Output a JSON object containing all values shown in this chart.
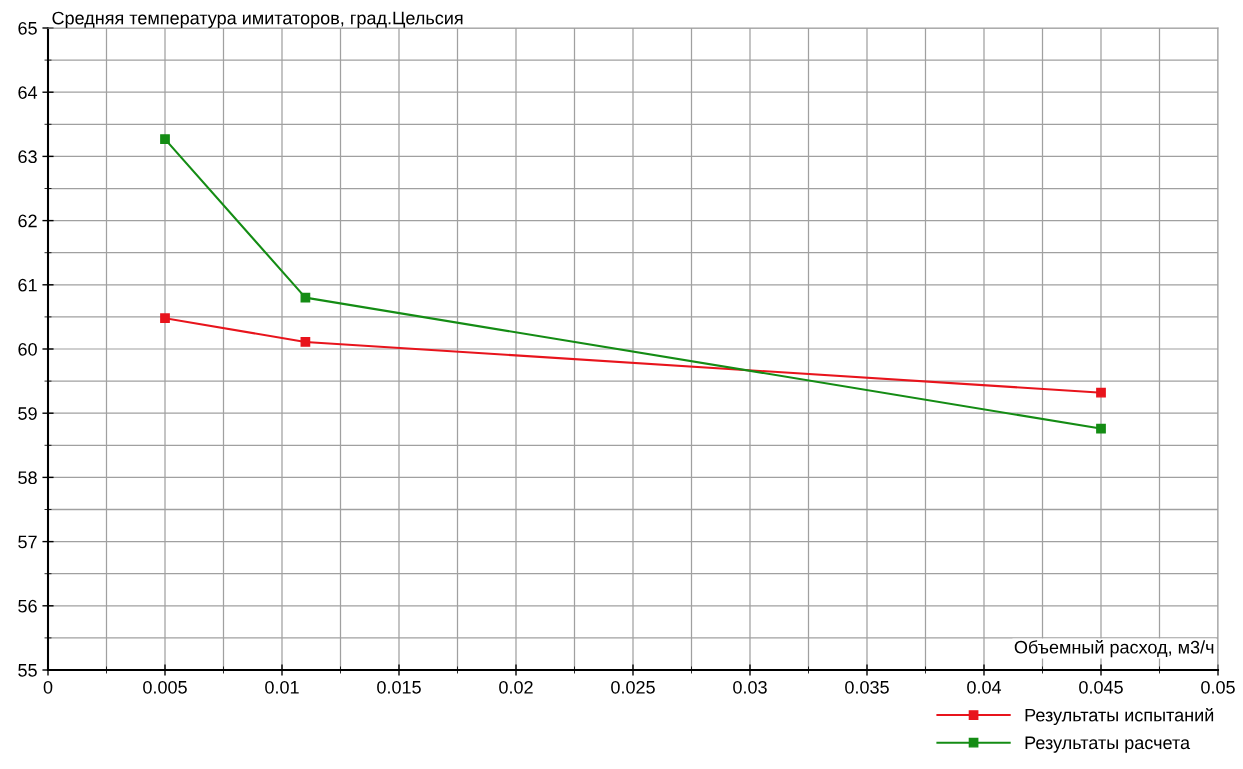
{
  "chart_data": {
    "type": "line",
    "xlabel": "Объемный расход, м3/ч",
    "ylabel": "Средняя температура имитаторов, град.Цельсия",
    "x": [
      0.005,
      0.011,
      0.045
    ],
    "series": [
      {
        "name": "Результаты испытаний",
        "color": "#e8141c",
        "values": [
          60.48,
          60.11,
          59.32
        ]
      },
      {
        "name": "Результаты расчета",
        "color": "#148c14",
        "values": [
          63.27,
          60.8,
          58.76
        ]
      }
    ],
    "xlim": [
      0,
      0.05
    ],
    "xticks": [
      0,
      0.005,
      0.01,
      0.015,
      0.02,
      0.025,
      0.03,
      0.035,
      0.04,
      0.045,
      0.05
    ],
    "ylim": [
      55,
      65
    ],
    "yticks": [
      55,
      56,
      57,
      58,
      59,
      60,
      61,
      62,
      63,
      64,
      65
    ],
    "grid": true,
    "legend": "bottom right",
    "marker": "square",
    "line_style": "solid"
  }
}
